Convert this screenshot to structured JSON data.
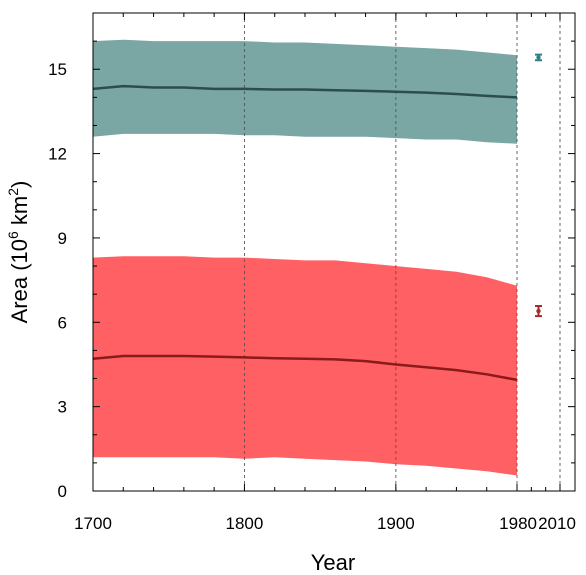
{
  "chart_data": {
    "type": "area",
    "xlabel": "Year",
    "ylabel_main": "Area (10",
    "ylabel_sup": "6",
    "ylabel_mid": " km",
    "ylabel_sup2": "2",
    "ylabel_end": ")",
    "ylim": [
      0,
      17
    ],
    "grid": "dashed vertical lines at 1800, 1900, 1980 and 2010",
    "x_ticks": [
      {
        "value": 1700,
        "label": "1700"
      },
      {
        "value": 1800,
        "label": "1800"
      },
      {
        "value": 1900,
        "label": "1900"
      },
      {
        "value": 1980,
        "label": "1980"
      },
      {
        "value": 2010,
        "label": "2010"
      }
    ],
    "y_ticks": [
      {
        "value": 0,
        "label": "0"
      },
      {
        "value": 3,
        "label": "3"
      },
      {
        "value": 6,
        "label": "6"
      },
      {
        "value": 9,
        "label": "9"
      },
      {
        "value": 12,
        "label": "12"
      },
      {
        "value": 15,
        "label": "15"
      }
    ],
    "x_axis_breakpoints": {
      "segment1": [
        1700,
        1980
      ],
      "segment2": [
        1980,
        2010
      ]
    },
    "series": [
      {
        "color": "#7aa6a3",
        "line_color": "#2c4d50",
        "x": [
          1700,
          1720,
          1740,
          1760,
          1780,
          1800,
          1820,
          1840,
          1860,
          1880,
          1900,
          1920,
          1940,
          1960,
          1980
        ],
        "mean": [
          14.3,
          14.4,
          14.35,
          14.35,
          14.3,
          14.3,
          14.28,
          14.28,
          14.25,
          14.23,
          14.2,
          14.17,
          14.12,
          14.05,
          14.0
        ],
        "upper": [
          16.0,
          16.05,
          16.0,
          16.0,
          16.0,
          16.0,
          15.95,
          15.95,
          15.9,
          15.85,
          15.8,
          15.75,
          15.7,
          15.6,
          15.5
        ],
        "lower": [
          12.6,
          12.7,
          12.7,
          12.7,
          12.7,
          12.65,
          12.65,
          12.6,
          12.6,
          12.6,
          12.55,
          12.5,
          12.5,
          12.4,
          12.35
        ]
      },
      {
        "color": "#ff6063",
        "line_color": "#8b1a1a",
        "x": [
          1700,
          1720,
          1740,
          1760,
          1780,
          1800,
          1820,
          1840,
          1860,
          1880,
          1900,
          1920,
          1940,
          1960,
          1980
        ],
        "mean": [
          4.7,
          4.8,
          4.8,
          4.8,
          4.78,
          4.75,
          4.72,
          4.7,
          4.68,
          4.62,
          4.5,
          4.4,
          4.3,
          4.15,
          3.95
        ],
        "upper": [
          8.3,
          8.35,
          8.35,
          8.35,
          8.3,
          8.3,
          8.25,
          8.2,
          8.2,
          8.1,
          8.0,
          7.9,
          7.8,
          7.6,
          7.3
        ],
        "lower": [
          1.2,
          1.2,
          1.2,
          1.2,
          1.2,
          1.15,
          1.2,
          1.15,
          1.1,
          1.05,
          0.95,
          0.9,
          0.8,
          0.7,
          0.55
        ]
      }
    ],
    "observations": [
      {
        "x": 1995,
        "y": 15.42,
        "err_low": 15.32,
        "err_high": 15.52,
        "color": "#2e7f85"
      },
      {
        "x": 1995,
        "y": 6.4,
        "err_low": 6.22,
        "err_high": 6.58,
        "color": "#a52a2a"
      }
    ]
  }
}
